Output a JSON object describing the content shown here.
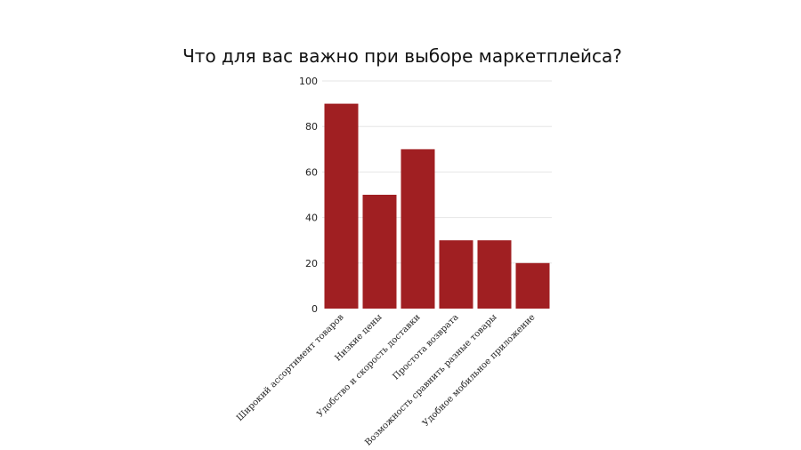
{
  "chart_data": {
    "type": "bar",
    "title": "Что для вас важно при выборе маркетплейса?",
    "categories": [
      "Широкий ассортимент товаров",
      "Низкие цены",
      "Удобство и скорость доставки",
      "Простота возврата",
      "Возможность сравнить разные товары",
      "Удобное мобильное приложение"
    ],
    "values": [
      90,
      50,
      70,
      30,
      30,
      20
    ],
    "ylim": [
      0,
      100
    ],
    "yticks": [
      "0",
      "20",
      "40",
      "60",
      "80",
      "100"
    ],
    "grid": true,
    "colors": {
      "bar": "#a01f22",
      "grid": "#e6e6e6"
    }
  }
}
